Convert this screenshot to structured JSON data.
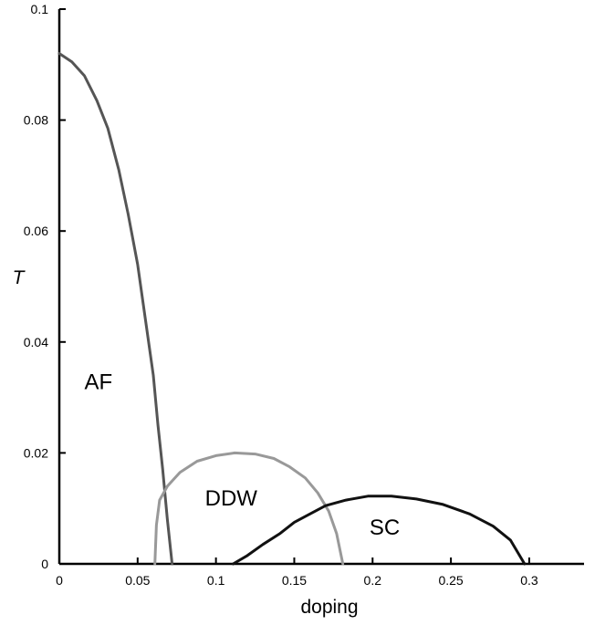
{
  "chart_data": {
    "type": "line",
    "title": "",
    "xlabel": "doping",
    "ylabel": "T",
    "xlim": [
      0,
      0.335
    ],
    "ylim": [
      0,
      0.1
    ],
    "x_ticks": [
      0,
      0.05,
      0.1,
      0.15,
      0.2,
      0.25,
      0.3
    ],
    "x_tick_labels": [
      "0",
      "0.05",
      "0.1",
      "0.15",
      "0.2",
      "0.25",
      "0.3"
    ],
    "y_ticks": [
      0,
      0.02,
      0.04,
      0.06,
      0.08,
      0.1
    ],
    "y_tick_labels": [
      "0",
      "0.02",
      "0.04",
      "0.06",
      "0.08",
      "0.1"
    ],
    "grid": false,
    "legend": "none",
    "series": [
      {
        "name": "AF",
        "color": "#555555",
        "points": [
          [
            0,
            0.092
          ],
          [
            0.008,
            0.0905
          ],
          [
            0.016,
            0.088
          ],
          [
            0.024,
            0.0835
          ],
          [
            0.031,
            0.0785
          ],
          [
            0.038,
            0.071
          ],
          [
            0.044,
            0.063
          ],
          [
            0.05,
            0.054
          ],
          [
            0.055,
            0.044
          ],
          [
            0.06,
            0.034
          ],
          [
            0.063,
            0.025
          ],
          [
            0.066,
            0.017
          ],
          [
            0.069,
            0.008
          ],
          [
            0.072,
            0
          ]
        ]
      },
      {
        "name": "DDW",
        "color": "#999999",
        "points": [
          [
            0.061,
            0
          ],
          [
            0.062,
            0.007
          ],
          [
            0.064,
            0.0115
          ],
          [
            0.069,
            0.014
          ],
          [
            0.077,
            0.0165
          ],
          [
            0.088,
            0.0185
          ],
          [
            0.1,
            0.0195
          ],
          [
            0.112,
            0.02
          ],
          [
            0.125,
            0.0198
          ],
          [
            0.137,
            0.019
          ],
          [
            0.147,
            0.0175
          ],
          [
            0.157,
            0.0155
          ],
          [
            0.165,
            0.0128
          ],
          [
            0.172,
            0.0095
          ],
          [
            0.177,
            0.0055
          ],
          [
            0.181,
            0
          ]
        ]
      },
      {
        "name": "SC",
        "color": "#111111",
        "points": [
          [
            0.111,
            0
          ],
          [
            0.12,
            0.0015
          ],
          [
            0.13,
            0.0035
          ],
          [
            0.141,
            0.0055
          ],
          [
            0.15,
            0.0075
          ],
          [
            0.16,
            0.009
          ],
          [
            0.17,
            0.0105
          ],
          [
            0.183,
            0.0115
          ],
          [
            0.197,
            0.0122
          ],
          [
            0.212,
            0.0122
          ],
          [
            0.228,
            0.0117
          ],
          [
            0.245,
            0.0107
          ],
          [
            0.262,
            0.009
          ],
          [
            0.277,
            0.0068
          ],
          [
            0.288,
            0.0043
          ],
          [
            0.297,
            0
          ]
        ]
      }
    ],
    "annotations": [
      {
        "text": "AF",
        "x": 0.016,
        "y": 0.0315
      },
      {
        "text": "DDW",
        "x": 0.093,
        "y": 0.0105
      },
      {
        "text": "SC",
        "x": 0.198,
        "y": 0.0053
      }
    ]
  }
}
